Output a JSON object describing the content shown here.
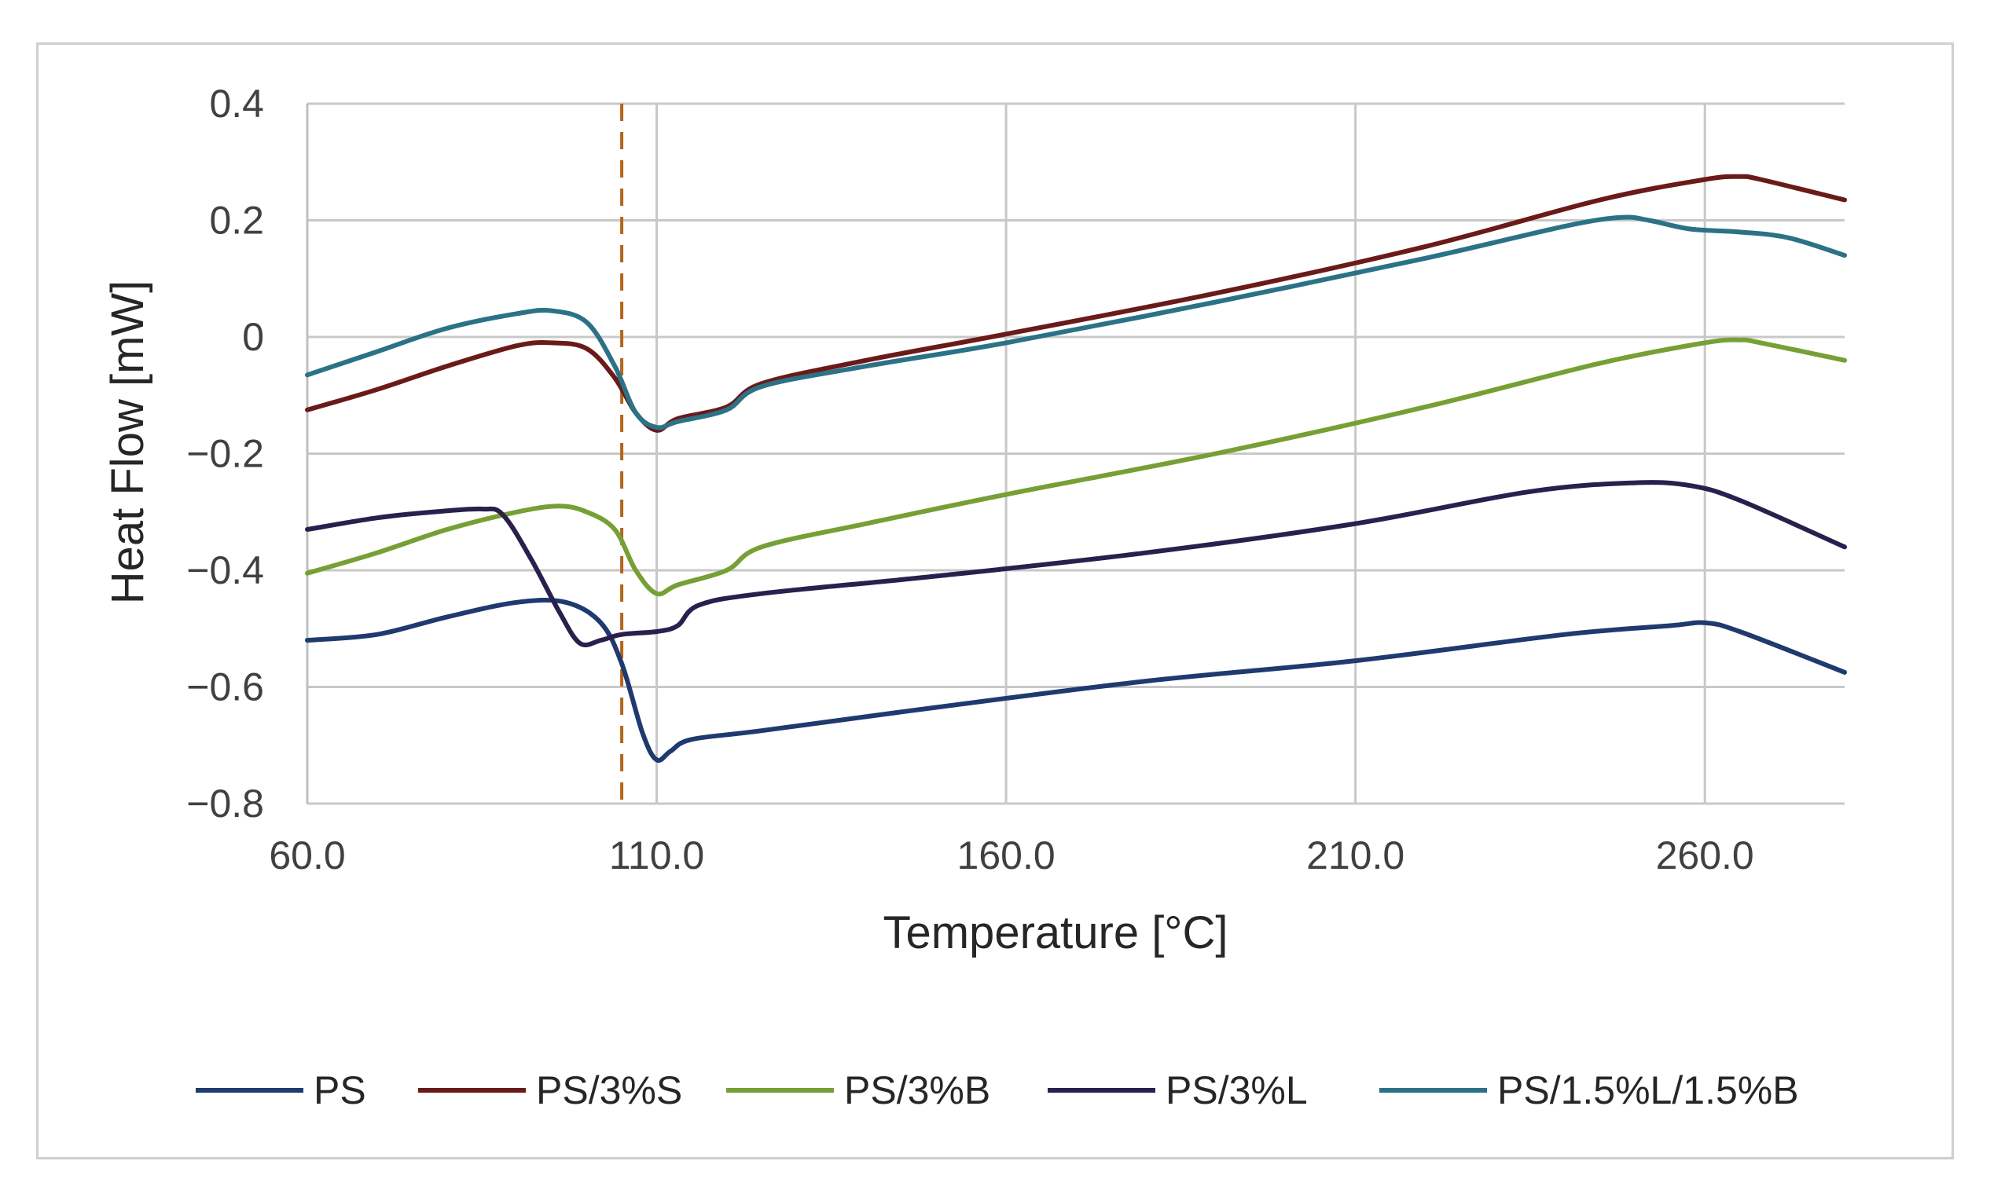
{
  "chart_data": {
    "type": "line",
    "title": "",
    "xlabel": "Temperature [°C]",
    "ylabel": "Heat Flow [mW]",
    "xlim": [
      60,
      280
    ],
    "ylim": [
      -0.8,
      0.4
    ],
    "x_ticks": [
      60,
      110,
      160,
      210,
      260
    ],
    "x_tick_labels": [
      "60.0",
      "110.0",
      "160.0",
      "210.0",
      "260.0"
    ],
    "y_ticks": [
      0.4,
      0.2,
      0,
      -0.2,
      -0.4,
      -0.6,
      -0.8
    ],
    "y_tick_labels": [
      "0.4",
      "0.2",
      "0",
      "−0.2",
      "−0.4",
      "−0.6",
      "−0.8"
    ],
    "grid": true,
    "legend_position": "bottom",
    "reference_line": {
      "x": 105,
      "style": "dashed",
      "color": "#b5651d"
    },
    "series": [
      {
        "name": "PS",
        "color": "#1f3a6e",
        "points": [
          [
            60,
            -0.52
          ],
          [
            70,
            -0.51
          ],
          [
            80,
            -0.48
          ],
          [
            90,
            -0.455
          ],
          [
            97,
            -0.455
          ],
          [
            102,
            -0.49
          ],
          [
            105,
            -0.56
          ],
          [
            108,
            -0.68
          ],
          [
            110,
            -0.725
          ],
          [
            112,
            -0.71
          ],
          [
            115,
            -0.69
          ],
          [
            125,
            -0.675
          ],
          [
            150,
            -0.635
          ],
          [
            180,
            -0.59
          ],
          [
            210,
            -0.555
          ],
          [
            240,
            -0.51
          ],
          [
            255,
            -0.495
          ],
          [
            260,
            -0.49
          ],
          [
            265,
            -0.505
          ],
          [
            280,
            -0.575
          ]
        ]
      },
      {
        "name": "PS/3%S",
        "color": "#6b1a1a",
        "points": [
          [
            60,
            -0.125
          ],
          [
            70,
            -0.09
          ],
          [
            80,
            -0.05
          ],
          [
            90,
            -0.015
          ],
          [
            95,
            -0.01
          ],
          [
            100,
            -0.02
          ],
          [
            104,
            -0.07
          ],
          [
            107,
            -0.13
          ],
          [
            110,
            -0.16
          ],
          [
            113,
            -0.14
          ],
          [
            120,
            -0.12
          ],
          [
            125,
            -0.08
          ],
          [
            140,
            -0.04
          ],
          [
            160,
            0.005
          ],
          [
            190,
            0.075
          ],
          [
            220,
            0.155
          ],
          [
            245,
            0.235
          ],
          [
            260,
            0.27
          ],
          [
            265,
            0.275
          ],
          [
            268,
            0.27
          ],
          [
            280,
            0.235
          ]
        ]
      },
      {
        "name": "PS/3%B",
        "color": "#76a035",
        "points": [
          [
            60,
            -0.405
          ],
          [
            70,
            -0.37
          ],
          [
            80,
            -0.33
          ],
          [
            90,
            -0.3
          ],
          [
            96,
            -0.29
          ],
          [
            100,
            -0.3
          ],
          [
            104,
            -0.33
          ],
          [
            107,
            -0.4
          ],
          [
            110,
            -0.44
          ],
          [
            113,
            -0.425
          ],
          [
            120,
            -0.4
          ],
          [
            125,
            -0.36
          ],
          [
            140,
            -0.32
          ],
          [
            160,
            -0.27
          ],
          [
            190,
            -0.2
          ],
          [
            220,
            -0.12
          ],
          [
            245,
            -0.045
          ],
          [
            260,
            -0.01
          ],
          [
            265,
            -0.005
          ],
          [
            268,
            -0.01
          ],
          [
            280,
            -0.04
          ]
        ]
      },
      {
        "name": "PS/3%L",
        "color": "#2b1f4e",
        "points": [
          [
            60,
            -0.33
          ],
          [
            70,
            -0.31
          ],
          [
            78,
            -0.3
          ],
          [
            85,
            -0.295
          ],
          [
            88,
            -0.305
          ],
          [
            92,
            -0.38
          ],
          [
            96,
            -0.47
          ],
          [
            99,
            -0.525
          ],
          [
            102,
            -0.52
          ],
          [
            105,
            -0.51
          ],
          [
            110,
            -0.505
          ],
          [
            113,
            -0.495
          ],
          [
            116,
            -0.46
          ],
          [
            125,
            -0.44
          ],
          [
            150,
            -0.41
          ],
          [
            180,
            -0.37
          ],
          [
            210,
            -0.32
          ],
          [
            235,
            -0.265
          ],
          [
            250,
            -0.25
          ],
          [
            258,
            -0.255
          ],
          [
            265,
            -0.28
          ],
          [
            280,
            -0.36
          ]
        ]
      },
      {
        "name": "PS/1.5%L/1.5%B",
        "color": "#2b7287",
        "points": [
          [
            60,
            -0.065
          ],
          [
            70,
            -0.025
          ],
          [
            80,
            0.015
          ],
          [
            90,
            0.04
          ],
          [
            95,
            0.045
          ],
          [
            100,
            0.025
          ],
          [
            104,
            -0.05
          ],
          [
            107,
            -0.13
          ],
          [
            110,
            -0.155
          ],
          [
            113,
            -0.145
          ],
          [
            120,
            -0.125
          ],
          [
            125,
            -0.085
          ],
          [
            140,
            -0.05
          ],
          [
            160,
            -0.01
          ],
          [
            190,
            0.06
          ],
          [
            220,
            0.135
          ],
          [
            240,
            0.19
          ],
          [
            248,
            0.205
          ],
          [
            252,
            0.2
          ],
          [
            258,
            0.185
          ],
          [
            265,
            0.18
          ],
          [
            272,
            0.17
          ],
          [
            280,
            0.14
          ]
        ]
      }
    ]
  }
}
